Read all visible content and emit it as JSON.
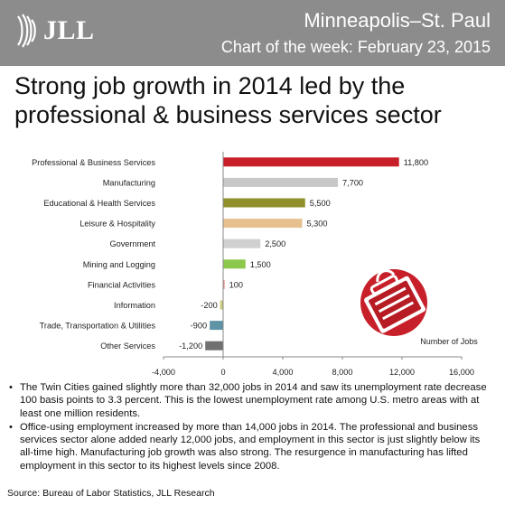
{
  "brand": {
    "logo_text": "JLL"
  },
  "header": {
    "location": "Minneapolis–St. Paul",
    "subtitle": "Chart of the week: February 23, 2015"
  },
  "headline": "Strong job growth in 2014 led by the professional & business services sector",
  "chart_data": {
    "type": "bar",
    "orientation": "horizontal",
    "categories": [
      "Professional & Business Services",
      "Manufacturing",
      "Educational & Health Services",
      "Leisure & Hospitality",
      "Government",
      "Mining and Logging",
      "Financial Activities",
      "Information",
      "Trade, Transportation & Utilities",
      "Other Services"
    ],
    "values": [
      11800,
      7700,
      5500,
      5300,
      2500,
      1500,
      100,
      -200,
      -900,
      -1200
    ],
    "data_labels": [
      "11,800",
      "7,700",
      "5,500",
      "5,300",
      "2,500",
      "1,500",
      "100",
      "-200",
      "-900",
      "-1,200"
    ],
    "colors": [
      "#c8202a",
      "#c8c8c8",
      "#8f8f2c",
      "#e6c08f",
      "#d0d0d0",
      "#8cc84b",
      "#e89090",
      "#c9c97a",
      "#5f94a6",
      "#707070"
    ],
    "x_ticks": [
      -4000,
      0,
      4000,
      8000,
      12000,
      16000
    ],
    "x_tick_labels": [
      "-4,000",
      "0",
      "4,000",
      "8,000",
      "12,000",
      "16,000"
    ],
    "xlim": [
      -4000,
      16000
    ],
    "xlabel": "Number of Jobs",
    "grid": false
  },
  "notes": [
    "The Twin Cities gained slightly more than 32,000 jobs in 2014 and saw its unemployment rate decrease 100 basis points to 3.3 percent. This is the lowest unemployment rate among U.S. metro areas with at least one million residents.",
    "Office-using employment increased by more than 14,000 jobs in 2014. The professional and business services sector alone added nearly 12,000 jobs, and employment in this sector is just slightly below its all-time high. Manufacturing job growth was also strong. The resurgence in manufacturing has lifted employment in this sector to its highest levels since 2008."
  ],
  "source": "Source: Bureau of Labor Statistics, JLL Research",
  "icons": {
    "logo": "jll-logo-icon",
    "illustration": "briefcase-icon"
  },
  "theme": {
    "header_bg": "#8c8c8c",
    "accent_red": "#c8202a"
  }
}
